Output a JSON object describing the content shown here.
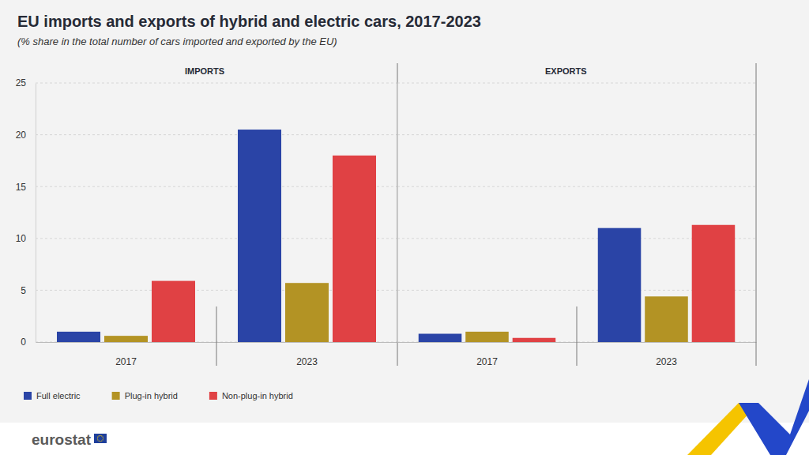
{
  "title": "EU imports and exports of hybrid and electric cars, 2017-2023",
  "subtitle": "(% share in the total number of cars imported and exported by the EU)",
  "source": "eurostat",
  "chart_data": [
    {
      "type": "bar",
      "title": "IMPORTS",
      "categories": [
        "2017",
        "2023"
      ],
      "series": [
        {
          "name": "Full electric",
          "color": "#2a44a6",
          "values": [
            1.0,
            20.5
          ]
        },
        {
          "name": "Plug-in hybrid",
          "color": "#b39324",
          "values": [
            0.6,
            5.7
          ]
        },
        {
          "name": "Non-plug-in hybrid",
          "color": "#e04144",
          "values": [
            5.9,
            18.0
          ]
        }
      ],
      "ylim": [
        0,
        25
      ],
      "yticks": [
        0,
        5,
        10,
        15,
        20,
        25
      ],
      "grid": true,
      "legend": "bottom-left"
    },
    {
      "type": "bar",
      "title": "EXPORTS",
      "categories": [
        "2017",
        "2023"
      ],
      "series": [
        {
          "color": "#2a44a6",
          "values": [
            0.8,
            11.0
          ]
        },
        {
          "color": "#b39324",
          "values": [
            1.0,
            4.4
          ]
        },
        {
          "color": "#e04144",
          "values": [
            0.4,
            11.3
          ]
        }
      ],
      "ylim": [
        0,
        25
      ],
      "yticks": [
        0,
        5,
        10,
        15,
        20,
        25
      ],
      "grid": true,
      "tick_labels": "x"
    }
  ]
}
